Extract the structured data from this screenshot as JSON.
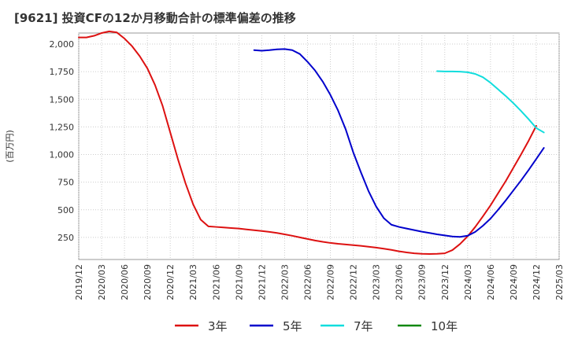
{
  "chart_data": {
    "type": "line",
    "title": "[9621]  投資CFの12か月移動合計の標準偏差の推移",
    "xlabel": "",
    "ylabel": "(百万円)",
    "ylim": [
      50,
      2100
    ],
    "yticks": [
      250,
      500,
      750,
      1000,
      1250,
      1500,
      1750,
      2000
    ],
    "ytick_labels": [
      "250",
      "500",
      "750",
      "1,000",
      "1,250",
      "1,500",
      "1,750",
      "2,000"
    ],
    "xlim": [
      "2019-12",
      "2025-03"
    ],
    "xtick_labels": [
      "2019/12",
      "2020/03",
      "2020/06",
      "2020/09",
      "2020/12",
      "2021/03",
      "2021/06",
      "2021/09",
      "2021/12",
      "2022/03",
      "2022/06",
      "2022/09",
      "2022/12",
      "2023/03",
      "2023/06",
      "2023/09",
      "2023/12",
      "2024/03",
      "2024/06",
      "2024/09",
      "2024/12",
      "2025/03"
    ],
    "grid": true,
    "legend_position": "bottom",
    "series": [
      {
        "name": "3年",
        "color": "#dd1111",
        "points": [
          [
            "2019-12",
            2060
          ],
          [
            "2020-01",
            2060
          ],
          [
            "2020-02",
            2075
          ],
          [
            "2020-03",
            2100
          ],
          [
            "2020-04",
            2115
          ],
          [
            "2020-05",
            2105
          ],
          [
            "2020-06",
            2050
          ],
          [
            "2020-07",
            1980
          ],
          [
            "2020-08",
            1890
          ],
          [
            "2020-09",
            1780
          ],
          [
            "2020-10",
            1630
          ],
          [
            "2020-11",
            1440
          ],
          [
            "2020-12",
            1200
          ],
          [
            "2021-01",
            960
          ],
          [
            "2021-02",
            740
          ],
          [
            "2021-03",
            550
          ],
          [
            "2021-04",
            410
          ],
          [
            "2021-05",
            350
          ],
          [
            "2021-06",
            345
          ],
          [
            "2021-07",
            340
          ],
          [
            "2021-08",
            335
          ],
          [
            "2021-09",
            330
          ],
          [
            "2021-10",
            322
          ],
          [
            "2021-11",
            315
          ],
          [
            "2021-12",
            308
          ],
          [
            "2022-01",
            300
          ],
          [
            "2022-02",
            290
          ],
          [
            "2022-03",
            278
          ],
          [
            "2022-04",
            265
          ],
          [
            "2022-05",
            250
          ],
          [
            "2022-06",
            236
          ],
          [
            "2022-07",
            222
          ],
          [
            "2022-08",
            210
          ],
          [
            "2022-09",
            200
          ],
          [
            "2022-10",
            192
          ],
          [
            "2022-11",
            186
          ],
          [
            "2022-12",
            180
          ],
          [
            "2023-01",
            174
          ],
          [
            "2023-02",
            166
          ],
          [
            "2023-03",
            158
          ],
          [
            "2023-04",
            148
          ],
          [
            "2023-05",
            137
          ],
          [
            "2023-06",
            124
          ],
          [
            "2023-07",
            114
          ],
          [
            "2023-08",
            106
          ],
          [
            "2023-09",
            102
          ],
          [
            "2023-10",
            100
          ],
          [
            "2023-11",
            102
          ],
          [
            "2023-12",
            106
          ],
          [
            "2024-01",
            135
          ],
          [
            "2024-02",
            190
          ],
          [
            "2024-03",
            260
          ],
          [
            "2024-04",
            345
          ],
          [
            "2024-05",
            440
          ],
          [
            "2024-06",
            540
          ],
          [
            "2024-07",
            650
          ],
          [
            "2024-08",
            760
          ],
          [
            "2024-09",
            880
          ],
          [
            "2024-10",
            1000
          ],
          [
            "2024-11",
            1125
          ],
          [
            "2024-12",
            1260
          ]
        ]
      },
      {
        "name": "5年",
        "color": "#0000cc",
        "points": [
          [
            "2021-11",
            1945
          ],
          [
            "2021-12",
            1940
          ],
          [
            "2022-01",
            1945
          ],
          [
            "2022-02",
            1952
          ],
          [
            "2022-03",
            1955
          ],
          [
            "2022-04",
            1945
          ],
          [
            "2022-05",
            1910
          ],
          [
            "2022-06",
            1840
          ],
          [
            "2022-07",
            1760
          ],
          [
            "2022-08",
            1660
          ],
          [
            "2022-09",
            1540
          ],
          [
            "2022-10",
            1400
          ],
          [
            "2022-11",
            1230
          ],
          [
            "2022-12",
            1020
          ],
          [
            "2023-01",
            840
          ],
          [
            "2023-02",
            670
          ],
          [
            "2023-03",
            530
          ],
          [
            "2023-04",
            425
          ],
          [
            "2023-05",
            365
          ],
          [
            "2023-06",
            345
          ],
          [
            "2023-07",
            330
          ],
          [
            "2023-08",
            316
          ],
          [
            "2023-09",
            302
          ],
          [
            "2023-10",
            290
          ],
          [
            "2023-11",
            278
          ],
          [
            "2023-12",
            268
          ],
          [
            "2024-01",
            258
          ],
          [
            "2024-02",
            255
          ],
          [
            "2024-03",
            265
          ],
          [
            "2024-04",
            300
          ],
          [
            "2024-05",
            355
          ],
          [
            "2024-06",
            420
          ],
          [
            "2024-07",
            500
          ],
          [
            "2024-08",
            585
          ],
          [
            "2024-09",
            675
          ],
          [
            "2024-10",
            765
          ],
          [
            "2024-11",
            860
          ],
          [
            "2024-12",
            960
          ],
          [
            "2025-01",
            1060
          ]
        ]
      },
      {
        "name": "7年",
        "color": "#11dddd",
        "points": [
          [
            "2023-11",
            1755
          ],
          [
            "2023-12",
            1752
          ],
          [
            "2024-01",
            1752
          ],
          [
            "2024-02",
            1750
          ],
          [
            "2024-03",
            1745
          ],
          [
            "2024-04",
            1730
          ],
          [
            "2024-05",
            1700
          ],
          [
            "2024-06",
            1650
          ],
          [
            "2024-07",
            1590
          ],
          [
            "2024-08",
            1530
          ],
          [
            "2024-09",
            1465
          ],
          [
            "2024-10",
            1395
          ],
          [
            "2024-11",
            1320
          ],
          [
            "2024-12",
            1240
          ],
          [
            "2025-01",
            1200
          ]
        ]
      },
      {
        "name": "10年",
        "color": "#118811",
        "points": []
      }
    ]
  }
}
